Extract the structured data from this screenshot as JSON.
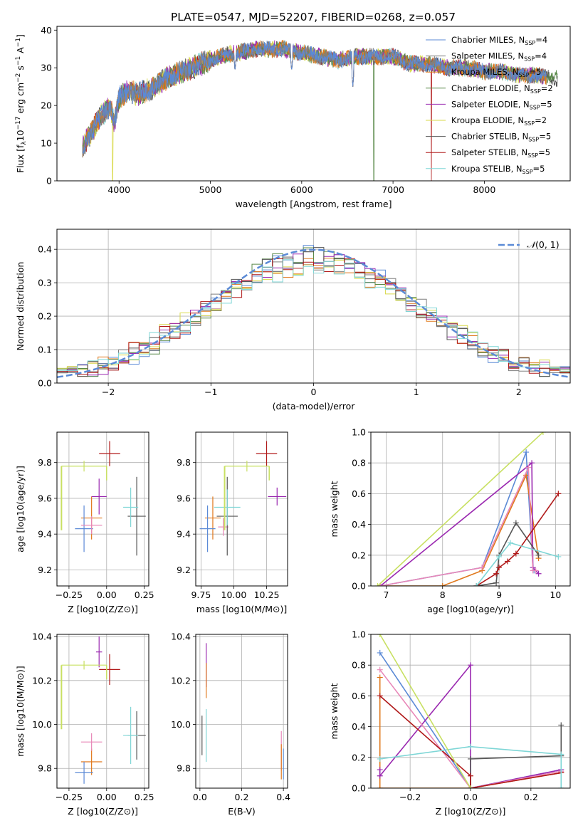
{
  "title": "PLATE=0547, MJD=52207, FIBERID=0268, z=0.057",
  "chart_data": [
    {
      "type": "line",
      "name": "spectrum",
      "xlabel": "wavelength [Angstrom, rest frame]",
      "ylabel": "Flux [f_λ 10^-17 erg cm^-2 s^-1 A^-1]",
      "xlim": [
        3320,
        8940
      ],
      "ylim": [
        0,
        41
      ],
      "xticks": [
        4000,
        5000,
        6000,
        7000,
        8000
      ],
      "yticks": [
        0,
        10,
        20,
        30,
        40
      ],
      "legend_position": "top-right",
      "series": [
        {
          "name": "Chabrier MILES, N_SSP=4",
          "color": "#5b8ad6"
        },
        {
          "name": "Salpeter MILES, N_SSP=4",
          "color": "#7f7f7f"
        },
        {
          "name": "Kroupa MILES, N_SSP=5",
          "color": "#e0781c"
        },
        {
          "name": "Chabrier ELODIE, N_SSP=2",
          "color": "#5a8a4a"
        },
        {
          "name": "Salpeter ELODIE, N_SSP=5",
          "color": "#9a28b0"
        },
        {
          "name": "Kroupa ELODIE, N_SSP=2",
          "color": "#d9d94a"
        },
        {
          "name": "Chabrier STELIB, N_SSP=5",
          "color": "#555555"
        },
        {
          "name": "Salpeter STELIB, N_SSP=5",
          "color": "#b01818"
        },
        {
          "name": "Kroupa STELIB, N_SSP=5",
          "color": "#7ed6d6"
        }
      ],
      "spectrum_nodes": {
        "x": [
          3600,
          3700,
          3800,
          3900,
          3950,
          4000,
          4100,
          4200,
          4300,
          4400,
          4500,
          4700,
          4900,
          5100,
          5300,
          5500,
          5800,
          6000,
          6200,
          6400,
          6600,
          6800,
          7000,
          7200,
          7400,
          7600,
          7800,
          8000,
          8200,
          8400,
          8600,
          8800
        ],
        "y": [
          9,
          13,
          17,
          20,
          15,
          22,
          24,
          23,
          24,
          25,
          27,
          29,
          31,
          33,
          34,
          35,
          35,
          34,
          33,
          32,
          33,
          33,
          33,
          31,
          31,
          30,
          30,
          29,
          29,
          28,
          28,
          27
        ]
      },
      "dips": [
        {
          "x": 3930,
          "y": 0
        },
        {
          "x": 5270,
          "y": 29
        },
        {
          "x": 5890,
          "y": 29
        },
        {
          "x": 6560,
          "y": 25
        },
        {
          "x": 6790,
          "y": 0
        },
        {
          "x": 7420,
          "y": 0
        }
      ]
    },
    {
      "type": "histogram",
      "name": "residuals",
      "xlabel": "(data-model)/error",
      "ylabel": "Normed distribution",
      "xlim": [
        -2.5,
        2.5
      ],
      "ylim": [
        0,
        0.46
      ],
      "xticks": [
        -2,
        -1,
        0,
        1,
        2
      ],
      "yticks": [
        0.0,
        0.1,
        0.2,
        0.3,
        0.4
      ],
      "legend": "N(0,1)",
      "reference_curve": {
        "type": "gaussian",
        "mean": 0,
        "sigma": 1,
        "color": "#5b8ad6",
        "dashed": true
      },
      "bin_width": 0.1
    },
    {
      "type": "scatter",
      "name": "age-vs-Z",
      "xlabel": "Z [log10(Z/Z⊙)]",
      "ylabel": "age [log10(age/yr)]",
      "xlim": [
        -0.33,
        0.28
      ],
      "ylim": [
        9.11,
        9.97
      ],
      "xticks": [
        -0.25,
        0.0,
        0.25
      ],
      "yticks": [
        9.2,
        9.4,
        9.6,
        9.8
      ],
      "points": [
        {
          "x": 0.02,
          "y": 9.85,
          "ex": 0.07,
          "ey": 0.07,
          "color": "#b01818"
        },
        {
          "x": -0.1,
          "y": 9.49,
          "ex": 0.07,
          "ey": 0.12,
          "color": "#e0781c"
        },
        {
          "x": -0.15,
          "y": 9.43,
          "ex": 0.06,
          "ey": 0.13,
          "color": "#5b8ad6"
        },
        {
          "x": -0.05,
          "y": 9.61,
          "ex": 0.05,
          "ey": 0.1,
          "color": "#9a28b0"
        },
        {
          "x": -0.1,
          "y": 9.45,
          "ex": 0.07,
          "ey": 0.05,
          "color": "#e887b8"
        },
        {
          "x": 0.2,
          "y": 9.5,
          "ex": 0.06,
          "ey": 0.22,
          "color": "#555555"
        },
        {
          "x": 0.16,
          "y": 9.55,
          "ex": 0.05,
          "ey": 0.11,
          "color": "#7ed6d6"
        },
        {
          "x": -0.15,
          "y": 9.78,
          "ex": 0.15,
          "ey": 0.03,
          "color": "#c8e062"
        }
      ]
    },
    {
      "type": "scatter",
      "name": "age-vs-mass",
      "xlabel": "mass [log10(M/M⊙)]",
      "ylabel": "",
      "xlim": [
        9.71,
        10.41
      ],
      "ylim": [
        9.11,
        9.97
      ],
      "xticks": [
        9.75,
        10.0,
        10.25
      ],
      "yticks": [
        9.2,
        9.4,
        9.6,
        9.8
      ],
      "points": [
        {
          "x": 10.25,
          "y": 9.85,
          "ex": 0.08,
          "ey": 0.07,
          "color": "#b01818"
        },
        {
          "x": 9.84,
          "y": 9.49,
          "ex": 0.06,
          "ey": 0.12,
          "color": "#e0781c"
        },
        {
          "x": 9.8,
          "y": 9.43,
          "ex": 0.06,
          "ey": 0.13,
          "color": "#5b8ad6"
        },
        {
          "x": 10.33,
          "y": 9.61,
          "ex": 0.07,
          "ey": 0.05,
          "color": "#9a28b0"
        },
        {
          "x": 9.92,
          "y": 9.44,
          "ex": 0.04,
          "ey": 0.05,
          "color": "#e887b8"
        },
        {
          "x": 9.95,
          "y": 9.5,
          "ex": 0.08,
          "ey": 0.22,
          "color": "#555555"
        },
        {
          "x": 9.95,
          "y": 9.55,
          "ex": 0.1,
          "ey": 0.1,
          "color": "#7ed6d6"
        },
        {
          "x": 10.1,
          "y": 9.78,
          "ex": 0.17,
          "ey": 0.03,
          "color": "#c8e062"
        }
      ]
    },
    {
      "type": "line",
      "name": "mass-weight-vs-age",
      "xlabel": "age [log10(age/yr)]",
      "ylabel": "mass weight",
      "xlim": [
        6.73,
        10.26
      ],
      "ylim": [
        0,
        1.0
      ],
      "xticks": [
        7,
        8,
        9,
        10
      ],
      "yticks": [
        0.0,
        0.2,
        0.4,
        0.6,
        0.8,
        1.0
      ],
      "series": [
        {
          "color": "#5b8ad6",
          "x": [
            6.9,
            8.7,
            9.48,
            9.6,
            9.62
          ],
          "y": [
            0.0,
            0.12,
            0.87,
            0.12,
            0.1
          ]
        },
        {
          "color": "#e0781c",
          "x": [
            6.9,
            8.0,
            8.7,
            9.48,
            9.7
          ],
          "y": [
            0.0,
            0.0,
            0.1,
            0.72,
            0.18
          ]
        },
        {
          "color": "#9a28b0",
          "x": [
            6.9,
            9.58,
            9.6,
            9.7
          ],
          "y": [
            0.0,
            0.8,
            0.12,
            0.08
          ]
        },
        {
          "color": "#e887b8",
          "x": [
            6.9,
            8.7,
            9.52,
            9.6,
            9.65
          ],
          "y": [
            0.0,
            0.12,
            0.77,
            0.1,
            0.1
          ]
        },
        {
          "color": "#555555",
          "x": [
            8.6,
            8.95,
            9.0,
            9.3,
            9.7
          ],
          "y": [
            0.0,
            0.02,
            0.2,
            0.41,
            0.2
          ]
        },
        {
          "color": "#b01818",
          "x": [
            8.6,
            8.95,
            9.0,
            9.15,
            9.3,
            10.05
          ],
          "y": [
            0.0,
            0.08,
            0.12,
            0.16,
            0.21,
            0.6
          ]
        },
        {
          "color": "#7ed6d6",
          "x": [
            8.6,
            9.0,
            9.2,
            10.05
          ],
          "y": [
            0.0,
            0.19,
            0.28,
            0.19
          ]
        },
        {
          "color": "#c8e062",
          "x": [
            6.85,
            9.78
          ],
          "y": [
            0.0,
            1.0
          ]
        }
      ]
    },
    {
      "type": "scatter",
      "name": "mass-vs-Z",
      "xlabel": "Z [log10(Z/Z⊙)]",
      "ylabel": "mass [log10(M/M⊙)]",
      "xlim": [
        -0.33,
        0.28
      ],
      "ylim": [
        9.71,
        10.41
      ],
      "xticks": [
        -0.25,
        0.0,
        0.25
      ],
      "yticks": [
        9.8,
        10.0,
        10.2,
        10.4
      ],
      "points": [
        {
          "x": 0.02,
          "y": 10.25,
          "ex": 0.07,
          "ey": 0.07,
          "color": "#b01818"
        },
        {
          "x": -0.1,
          "y": 9.83,
          "ex": 0.07,
          "ey": 0.06,
          "color": "#e0781c"
        },
        {
          "x": -0.15,
          "y": 9.78,
          "ex": 0.06,
          "ey": 0.05,
          "color": "#5b8ad6"
        },
        {
          "x": -0.05,
          "y": 10.33,
          "ex": 0.02,
          "ey": 0.07,
          "color": "#9a28b0"
        },
        {
          "x": -0.1,
          "y": 9.92,
          "ex": 0.07,
          "ey": 0.04,
          "color": "#e887b8"
        },
        {
          "x": 0.2,
          "y": 9.95,
          "ex": 0.06,
          "ey": 0.11,
          "color": "#555555"
        },
        {
          "x": 0.16,
          "y": 9.95,
          "ex": 0.05,
          "ey": 0.13,
          "color": "#7ed6d6"
        },
        {
          "x": -0.15,
          "y": 10.27,
          "ex": 0.15,
          "ey": 0.02,
          "color": "#c8e062"
        }
      ]
    },
    {
      "type": "scatter",
      "name": "mass-vs-EBV",
      "xlabel": "E(B-V)",
      "ylabel": "",
      "xlim": [
        -0.02,
        0.42
      ],
      "ylim": [
        9.71,
        10.41
      ],
      "xticks": [
        0.0,
        0.2,
        0.4
      ],
      "yticks": [
        9.8,
        10.0,
        10.2,
        10.4
      ],
      "points": [
        {
          "x": 0.01,
          "y": 9.95,
          "ex": 0.0,
          "ey": 0.09,
          "color": "#555555"
        },
        {
          "x": 0.03,
          "y": 10.27,
          "ex": 0.0,
          "ey": 0.1,
          "color": "#9a28b0"
        },
        {
          "x": 0.03,
          "y": 10.2,
          "ex": 0.0,
          "ey": 0.08,
          "color": "#e0781c"
        },
        {
          "x": 0.03,
          "y": 9.95,
          "ex": 0.0,
          "ey": 0.12,
          "color": "#7ed6d6"
        },
        {
          "x": 0.39,
          "y": 9.88,
          "ex": 0.0,
          "ey": 0.09,
          "color": "#e887b8"
        },
        {
          "x": 0.39,
          "y": 9.83,
          "ex": 0.0,
          "ey": 0.08,
          "color": "#e0781c"
        },
        {
          "x": 0.4,
          "y": 9.82,
          "ex": 0.0,
          "ey": 0.07,
          "color": "#5b8ad6"
        }
      ]
    },
    {
      "type": "line",
      "name": "mass-weight-vs-Z",
      "xlabel": "Z [log10(Z/Z⊙)]",
      "ylabel": "mass weight",
      "xlim": [
        -0.33,
        0.33
      ],
      "ylim": [
        0,
        1.0
      ],
      "xticks": [
        -0.2,
        0.0,
        0.2
      ],
      "yticks": [
        0.0,
        0.2,
        0.4,
        0.6,
        0.8,
        1.0
      ],
      "series": [
        {
          "color": "#5b8ad6",
          "x": [
            -0.3,
            0.0,
            0.3
          ],
          "y": [
            0.88,
            0.0,
            0.12
          ]
        },
        {
          "color": "#e0781c",
          "x": [
            -0.3,
            -0.3,
            0.0,
            0.3
          ],
          "y": [
            0.72,
            0.0,
            0.0,
            0.1
          ]
        },
        {
          "color": "#9a28b0",
          "x": [
            -0.3,
            -0.3,
            0.0,
            0.0,
            0.3
          ],
          "y": [
            0.12,
            0.08,
            0.8,
            0.0,
            0.12
          ]
        },
        {
          "color": "#e887b8",
          "x": [
            -0.3,
            0.0,
            0.3
          ],
          "y": [
            0.77,
            0.0,
            0.11
          ]
        },
        {
          "color": "#555555",
          "x": [
            0.0,
            0.0,
            0.3,
            0.3
          ],
          "y": [
            0.0,
            0.19,
            0.21,
            0.41
          ]
        },
        {
          "color": "#b01818",
          "x": [
            -0.3,
            0.0,
            0.0,
            0.3
          ],
          "y": [
            0.6,
            0.08,
            0.0,
            0.1
          ]
        },
        {
          "color": "#7ed6d6",
          "x": [
            -0.3,
            0.0,
            0.3,
            0.3
          ],
          "y": [
            0.19,
            0.27,
            0.22,
            0.0
          ]
        },
        {
          "color": "#c8e062",
          "x": [
            -0.3,
            0.0
          ],
          "y": [
            1.0,
            0.0
          ]
        }
      ]
    }
  ]
}
